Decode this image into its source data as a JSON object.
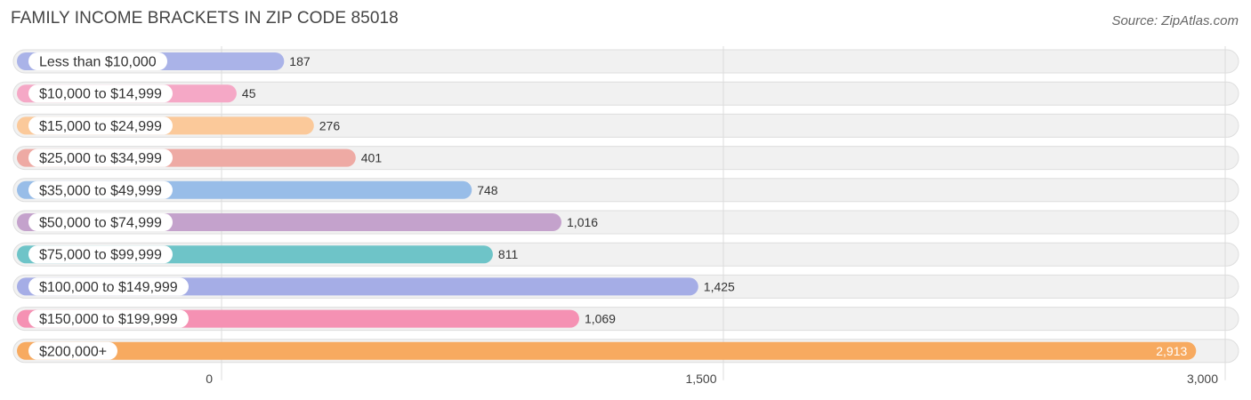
{
  "chart_data": {
    "type": "bar",
    "orientation": "horizontal",
    "title": "FAMILY INCOME BRACKETS IN ZIP CODE 85018",
    "source": "Source: ZipAtlas.com",
    "categories": [
      "Less than $10,000",
      "$10,000 to $14,999",
      "$15,000 to $24,999",
      "$25,000 to $34,999",
      "$35,000 to $49,999",
      "$50,000 to $74,999",
      "$75,000 to $99,999",
      "$100,000 to $149,999",
      "$150,000 to $199,999",
      "$200,000+"
    ],
    "values": [
      187,
      45,
      276,
      401,
      748,
      1016,
      811,
      1425,
      1069,
      2913
    ],
    "value_labels": [
      "187",
      "45",
      "276",
      "401",
      "748",
      "1,016",
      "811",
      "1,425",
      "1,069",
      "2,913"
    ],
    "colors": [
      "#aab3e8",
      "#f5a8c6",
      "#fbc99a",
      "#eeaaa4",
      "#98bde8",
      "#c4a2cc",
      "#6ec4c8",
      "#a5ade6",
      "#f591b3",
      "#f7aa60"
    ],
    "xlim": [
      0,
      3000
    ],
    "ticks": [
      0,
      1500,
      3000
    ],
    "tick_labels": [
      "0",
      "1,500",
      "3,000"
    ],
    "xlabel": "",
    "ylabel": "",
    "grid": true
  }
}
